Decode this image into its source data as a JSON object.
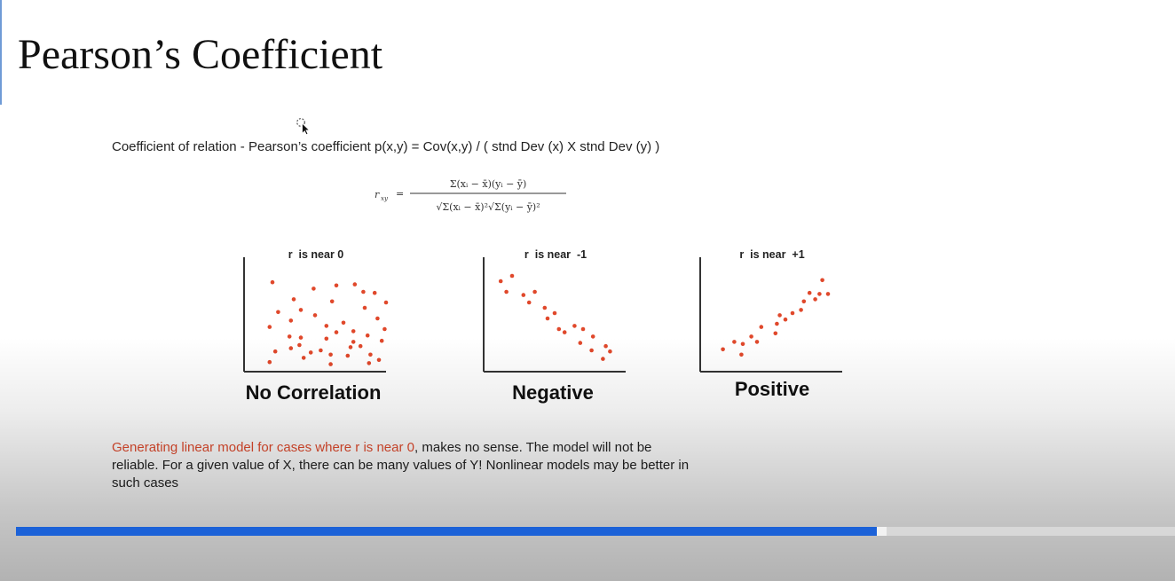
{
  "slide": {
    "title": "Pearson’s Coefficient",
    "intro_text": "Coefficient of relation - Pearson’s coefficient  p(x,y) = Cov(x,y) / ( stnd Dev (x) X stnd Dev (y) )",
    "formula": {
      "lhs": "r",
      "lhs_sub": "xy",
      "numerator": "Σ(xᵢ − x̄)(yᵢ − ȳ)",
      "denominator": "√Σ(xᵢ − x̄)²√Σ(yᵢ − ȳ)²"
    },
    "bottom_text": {
      "highlight": "Generating linear model for cases where r is near 0",
      "rest": ", makes no sense. The model will not be reliable. For a given value of X, there can be many values of Y! Nonlinear models may be better in such cases"
    }
  },
  "chart_data": [
    {
      "type": "scatter",
      "title": "r  is near 0",
      "label": "No Correlation",
      "point_color": "#e0482b",
      "x": [
        2.0,
        4.9,
        3.5,
        6.5,
        9.2,
        6.2,
        7.8,
        8.4,
        10.0,
        4.0,
        8.5,
        2.4,
        5.0,
        3.3,
        7.0,
        9.4,
        5.8,
        9.9,
        6.5,
        7.7,
        3.2,
        8.7,
        4.0,
        1.8,
        5.8,
        7.7,
        9.7,
        3.9,
        7.5,
        8.2,
        3.3,
        5.4,
        2.2,
        4.7,
        6.1,
        7.3,
        8.9,
        9.5,
        1.8,
        6.1,
        4.2,
        8.8
      ],
      "y": [
        8.4,
        7.8,
        6.8,
        8.1,
        7.4,
        6.6,
        8.2,
        7.5,
        6.5,
        5.8,
        6.0,
        5.6,
        5.3,
        4.8,
        4.6,
        5.0,
        4.3,
        4.0,
        3.7,
        3.8,
        3.3,
        3.4,
        3.2,
        4.2,
        3.1,
        2.8,
        2.9,
        2.5,
        2.3,
        2.4,
        2.2,
        2.0,
        1.9,
        1.8,
        1.6,
        1.5,
        1.6,
        1.1,
        0.9,
        0.7,
        1.3,
        0.8
      ]
    },
    {
      "type": "scatter",
      "title": "r  is near  -1",
      "label": "Negative",
      "point_color": "#e0482b",
      "x": [
        1.2,
        2.0,
        1.6,
        2.8,
        3.6,
        3.2,
        4.3,
        5.0,
        4.5,
        5.3,
        6.4,
        5.7,
        7.0,
        7.7,
        6.8,
        8.6,
        7.6,
        8.9,
        8.4
      ],
      "y": [
        8.5,
        9.0,
        7.5,
        7.2,
        7.5,
        6.5,
        6.0,
        5.5,
        5.0,
        4.0,
        4.3,
        3.7,
        4.0,
        3.3,
        2.7,
        2.4,
        2.0,
        1.9,
        1.2
      ]
    },
    {
      "type": "scatter",
      "title": "r  is near  +1",
      "label": "Positive",
      "point_color": "#e0482b",
      "x": [
        1.6,
        2.4,
        3.0,
        2.9,
        4.0,
        3.6,
        4.3,
        5.4,
        5.3,
        6.0,
        5.6,
        7.1,
        6.5,
        7.3,
        7.7,
        8.4,
        8.1,
        9.0,
        8.6
      ],
      "y": [
        2.1,
        2.8,
        2.6,
        1.6,
        2.8,
        3.3,
        4.2,
        4.5,
        3.6,
        4.9,
        5.3,
        5.8,
        5.5,
        6.6,
        7.4,
        7.3,
        6.8,
        7.3,
        8.6
      ]
    }
  ],
  "progress": {
    "played_pct": 74.3,
    "buffered_pct": 75.1
  },
  "colors": {
    "accent": "#1c62d8",
    "highlight": "#e04b2e"
  }
}
